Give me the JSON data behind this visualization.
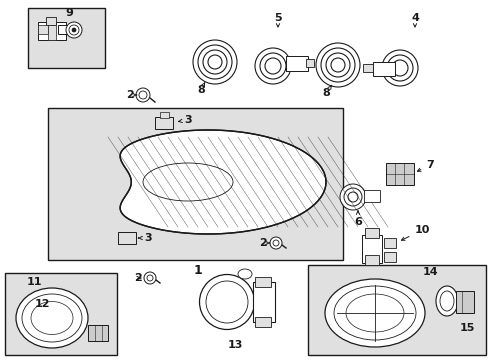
{
  "bg_color": "#ffffff",
  "line_color": "#1a1a1a",
  "gray_fill": "#e0e0e0",
  "light_gray": "#cccccc",
  "fig_width": 4.89,
  "fig_height": 3.6,
  "dpi": 100
}
